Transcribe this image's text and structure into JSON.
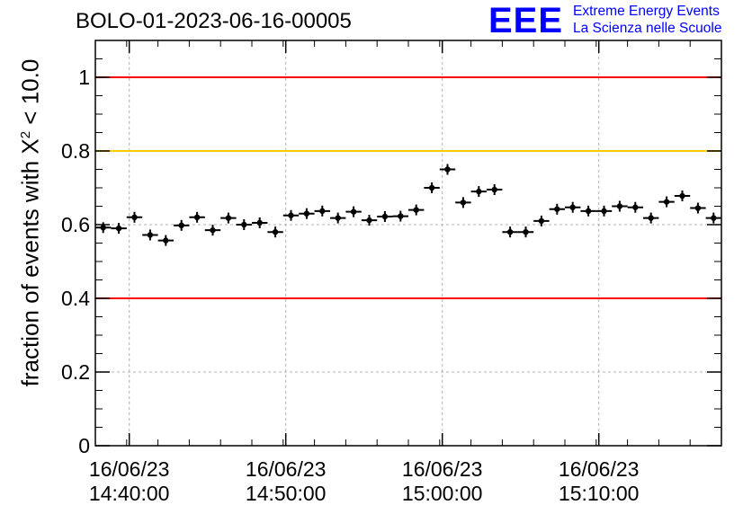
{
  "title": "BOLO-01-2023-06-16-00005",
  "logo": {
    "mark": "EEE",
    "line1": "Extreme Energy Events",
    "line2": "La Scienza nelle Scuole",
    "color": "#0000ff"
  },
  "chart_data": {
    "type": "scatter",
    "ylabel_main": "fraction of events with ",
    "ylabel_symbol": "X",
    "ylabel_sup": "2",
    "ylabel_tail": " < 10.0",
    "ylim": [
      0,
      1.1
    ],
    "yticks": [
      0,
      0.2,
      0.4,
      0.6,
      0.8,
      1
    ],
    "ytick_labels": [
      "0",
      "0.2",
      "0.4",
      "0.6",
      "0.8",
      "1"
    ],
    "xlim": [
      "14:37:50",
      "15:17:50"
    ],
    "xticks": [
      {
        "date": "16/06/23",
        "time": "14:40:00"
      },
      {
        "date": "16/06/23",
        "time": "14:50:00"
      },
      {
        "date": "16/06/23",
        "time": "15:00:00"
      },
      {
        "date": "16/06/23",
        "time": "15:10:00"
      }
    ],
    "grid": true,
    "reference_lines": [
      {
        "y": 1.0,
        "color": "#ff0000"
      },
      {
        "y": 0.8,
        "color": "#ffcc00"
      },
      {
        "y": 0.4,
        "color": "#ff0000"
      }
    ],
    "x": [
      "14:38:20",
      "14:39:20",
      "14:40:20",
      "14:41:20",
      "14:42:20",
      "14:43:20",
      "14:44:20",
      "14:45:20",
      "14:46:20",
      "14:47:20",
      "14:48:20",
      "14:49:20",
      "14:50:20",
      "14:51:20",
      "14:52:20",
      "14:53:20",
      "14:54:20",
      "14:55:20",
      "14:56:20",
      "14:57:20",
      "14:58:20",
      "14:59:20",
      "15:00:20",
      "15:01:20",
      "15:02:20",
      "15:03:20",
      "15:04:20",
      "15:05:20",
      "15:06:20",
      "15:07:20",
      "15:08:20",
      "15:09:20",
      "15:10:20",
      "15:11:20",
      "15:12:20",
      "15:13:20",
      "15:14:20",
      "15:15:20",
      "15:16:20",
      "15:17:20"
    ],
    "y": [
      0.592,
      0.59,
      0.62,
      0.572,
      0.557,
      0.598,
      0.62,
      0.585,
      0.618,
      0.6,
      0.605,
      0.58,
      0.625,
      0.63,
      0.637,
      0.618,
      0.635,
      0.612,
      0.622,
      0.623,
      0.64,
      0.7,
      0.75,
      0.66,
      0.69,
      0.695,
      0.58,
      0.58,
      0.61,
      0.642,
      0.647,
      0.637,
      0.637,
      0.65,
      0.647,
      0.618,
      0.662,
      0.678,
      0.645,
      0.618
    ],
    "colors": {
      "marker": "#000000",
      "grid": "#b0b0b0"
    }
  }
}
